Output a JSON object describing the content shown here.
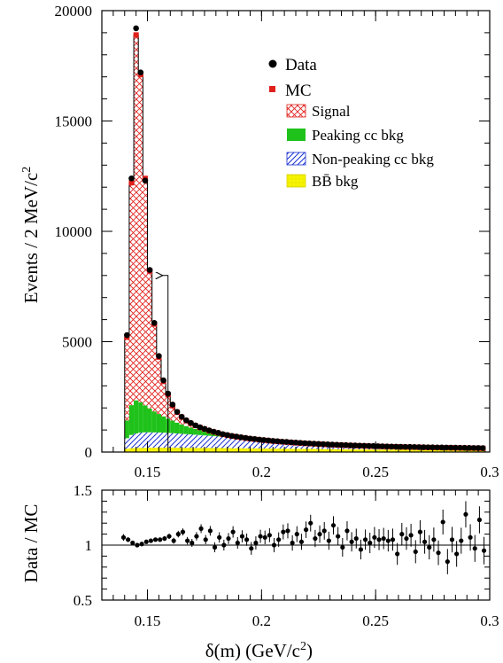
{
  "chart_data": [
    {
      "type": "bar",
      "ylabel": "Events / 2 MeV/c",
      "ylabel_sup": "2",
      "xlim": [
        0.13,
        0.3
      ],
      "ylim": [
        0,
        20000
      ],
      "x_ticks": [
        "0.15",
        "0.2",
        "0.25",
        "0.3"
      ],
      "y_ticks": [
        "0",
        "5000",
        "10000",
        "15000",
        "20000"
      ],
      "legend": {
        "position": "top-right",
        "entries": [
          {
            "key": "data",
            "label": "Data",
            "marker": "dot"
          },
          {
            "key": "mc",
            "label": "MC",
            "marker": "red-square"
          },
          {
            "key": "signal",
            "label": "Signal",
            "marker": "red-crosshatch"
          },
          {
            "key": "peaking",
            "label": "Peaking cc bkg",
            "marker": "green-fill"
          },
          {
            "key": "nonpeaking",
            "label": "Non-peaking cc bkg",
            "marker": "blue-hatch"
          },
          {
            "key": "bbbar",
            "label": "BB̄ bkg",
            "marker": "yellow-fill"
          }
        ]
      },
      "annotation": {
        "type": "arrow",
        "x": 0.159,
        "y_from": 0,
        "y_to": 8000
      },
      "bin_width": 0.002,
      "bins": {
        "x_low": [
          0.138,
          0.14,
          0.142,
          0.144,
          0.146,
          0.148,
          0.15,
          0.152,
          0.154,
          0.156,
          0.158,
          0.16,
          0.162,
          0.164,
          0.166,
          0.168,
          0.17,
          0.172,
          0.174,
          0.176,
          0.178,
          0.18,
          0.182,
          0.184,
          0.186,
          0.188,
          0.19,
          0.192,
          0.194,
          0.196,
          0.198,
          0.2,
          0.202,
          0.204,
          0.206,
          0.208,
          0.21,
          0.212,
          0.214,
          0.216,
          0.218,
          0.22,
          0.222,
          0.224,
          0.226,
          0.228,
          0.23,
          0.232,
          0.234,
          0.236,
          0.238,
          0.24,
          0.242,
          0.244,
          0.246,
          0.248,
          0.25,
          0.252,
          0.254,
          0.256,
          0.258,
          0.26,
          0.262,
          0.264,
          0.266,
          0.268,
          0.27,
          0.272,
          0.274,
          0.276,
          0.278,
          0.28,
          0.282,
          0.284,
          0.286,
          0.288,
          0.29,
          0.292,
          0.294,
          0.296
        ],
        "mc_total": [
          0,
          5200,
          12200,
          18900,
          17100,
          12400,
          8200,
          5800,
          4300,
          3200,
          2600,
          2100,
          1800,
          1580,
          1420,
          1300,
          1200,
          1110,
          1040,
          970,
          910,
          860,
          800,
          760,
          720,
          690,
          660,
          630,
          600,
          580,
          555,
          535,
          515,
          495,
          478,
          462,
          448,
          432,
          418,
          405,
          392,
          380,
          369,
          358,
          348,
          338,
          329,
          320,
          312,
          304,
          296,
          289,
          282,
          275,
          269,
          263,
          257,
          251,
          246,
          241,
          236,
          231,
          227,
          223,
          219,
          215,
          211,
          207,
          204,
          201,
          198,
          195,
          192,
          189,
          186,
          183,
          180,
          177,
          174,
          171
        ],
        "data": [
          0,
          5300,
          12400,
          19200,
          17200,
          12300,
          8250,
          5850,
          4350,
          3250,
          2650,
          2150,
          1820,
          1600,
          1440,
          1320,
          1210,
          1120,
          1050,
          980,
          920,
          870,
          810,
          770,
          730,
          700,
          670,
          640,
          610,
          590,
          565,
          545,
          525,
          505,
          488,
          472,
          458,
          442,
          428,
          415,
          402,
          390,
          378,
          367,
          357,
          347,
          338,
          329,
          321,
          313,
          305,
          298,
          291,
          284,
          278,
          272,
          266,
          260,
          255,
          250,
          245,
          240,
          236,
          232,
          228,
          224,
          220,
          216,
          213,
          210,
          207,
          204,
          201,
          198,
          195,
          192,
          189,
          186,
          183,
          180
        ],
        "peaking": [
          0,
          800,
          1350,
          1500,
          1380,
          1220,
          1080,
          950,
          840,
          740,
          650,
          570,
          490,
          420,
          360,
          310,
          260,
          220,
          185,
          155,
          130,
          110,
          92,
          77,
          64,
          54,
          46,
          39,
          33,
          28,
          24,
          21,
          18,
          16,
          14,
          12,
          11,
          10,
          9,
          8,
          7,
          7,
          6,
          6,
          5,
          5,
          5,
          4,
          4,
          4,
          4,
          3,
          3,
          3,
          3,
          3,
          3,
          3,
          2,
          2,
          2,
          2,
          2,
          2,
          2,
          2,
          2,
          2,
          2,
          2,
          2,
          2,
          2,
          2,
          2,
          2,
          2,
          2,
          2,
          2
        ],
        "nonpeaking": [
          0,
          480,
          600,
          660,
          690,
          700,
          700,
          695,
          688,
          680,
          670,
          660,
          648,
          635,
          622,
          608,
          594,
          580,
          566,
          552,
          538,
          524,
          510,
          496,
          482,
          468,
          454,
          440,
          428,
          416,
          404,
          392,
          380,
          369,
          358,
          347,
          337,
          327,
          317,
          308,
          299,
          290,
          281,
          273,
          265,
          257,
          250,
          243,
          236,
          229,
          222,
          216,
          210,
          204,
          198,
          193,
          188,
          183,
          178,
          173,
          168,
          164,
          160,
          156,
          152,
          148,
          144,
          140,
          137,
          134,
          131,
          128,
          125,
          122,
          119,
          116,
          113,
          110,
          107,
          104
        ],
        "bbbar": [
          0,
          150,
          175,
          185,
          190,
          193,
          195,
          196,
          197,
          197,
          197,
          196,
          195,
          194,
          193,
          192,
          191,
          190,
          188,
          186,
          184,
          182,
          180,
          178,
          176,
          174,
          172,
          170,
          168,
          166,
          164,
          162,
          160,
          158,
          156,
          154,
          152,
          150,
          148,
          146,
          144,
          142,
          140,
          138,
          136,
          134,
          132,
          130,
          128,
          126,
          124,
          122,
          120,
          118,
          116,
          114,
          112,
          110,
          108,
          106,
          104,
          102,
          100,
          98,
          96,
          94,
          92,
          90,
          88,
          86,
          84,
          82,
          80,
          78,
          76,
          74,
          72,
          70,
          68,
          66
        ]
      }
    },
    {
      "type": "scatter",
      "ylabel": "Data / MC",
      "xlabel": "δ(m) (GeV/c",
      "xlabel_sup": "2",
      "xlabel_tail": ")",
      "xlim": [
        0.13,
        0.3
      ],
      "ylim": [
        0.5,
        1.5
      ],
      "x_ticks": [
        "0.15",
        "0.2",
        "0.25",
        "0.3"
      ],
      "y_ticks": [
        "0.5",
        "1",
        "1.5"
      ],
      "reference_line": 1.0,
      "x": [
        0.1395,
        0.1415,
        0.1435,
        0.1455,
        0.1475,
        0.1495,
        0.1515,
        0.1535,
        0.1555,
        0.1575,
        0.1595,
        0.1615,
        0.1635,
        0.1655,
        0.1675,
        0.1695,
        0.1715,
        0.1735,
        0.1755,
        0.1775,
        0.1795,
        0.1815,
        0.1835,
        0.1855,
        0.1875,
        0.1895,
        0.1915,
        0.1935,
        0.1955,
        0.1975,
        0.1995,
        0.2015,
        0.2035,
        0.2055,
        0.2075,
        0.2095,
        0.2115,
        0.2135,
        0.2155,
        0.2175,
        0.2195,
        0.2215,
        0.2235,
        0.2255,
        0.2275,
        0.2295,
        0.2315,
        0.2335,
        0.2355,
        0.2375,
        0.2395,
        0.2415,
        0.2435,
        0.2455,
        0.2475,
        0.2495,
        0.2515,
        0.2535,
        0.2555,
        0.2575,
        0.2595,
        0.2615,
        0.2635,
        0.2655,
        0.2675,
        0.2695,
        0.2715,
        0.2735,
        0.2755,
        0.2775,
        0.2795,
        0.2815,
        0.2835,
        0.2855,
        0.2875,
        0.2895,
        0.2915,
        0.2935,
        0.2955,
        0.2975
      ],
      "y": [
        1.07,
        1.05,
        1.02,
        1.0,
        1.01,
        1.03,
        1.04,
        1.05,
        1.05,
        1.06,
        1.08,
        1.04,
        1.1,
        1.12,
        1.04,
        1.02,
        1.08,
        1.15,
        1.05,
        1.13,
        0.98,
        1.07,
        1.0,
        1.06,
        1.12,
        1.02,
        1.08,
        1.05,
        0.97,
        1.02,
        1.08,
        1.07,
        1.09,
        1.0,
        1.05,
        1.12,
        1.13,
        1.02,
        1.1,
        1.03,
        1.14,
        1.2,
        1.06,
        1.1,
        1.13,
        1.04,
        1.18,
        1.08,
        0.98,
        1.13,
        1.03,
        1.06,
        0.96,
        1.05,
        1.02,
        1.07,
        1.05,
        1.06,
        1.04,
        1.05,
        0.92,
        1.1,
        1.06,
        1.09,
        0.94,
        1.12,
        1.03,
        0.98,
        1.05,
        0.93,
        1.21,
        0.85,
        1.05,
        0.92,
        1.04,
        1.28,
        1.07,
        0.97,
        1.23,
        0.95
      ],
      "yerr": [
        0.03,
        0.02,
        0.015,
        0.012,
        0.012,
        0.013,
        0.015,
        0.017,
        0.02,
        0.022,
        0.024,
        0.027,
        0.03,
        0.032,
        0.034,
        0.036,
        0.038,
        0.04,
        0.042,
        0.044,
        0.045,
        0.047,
        0.049,
        0.05,
        0.052,
        0.053,
        0.055,
        0.056,
        0.058,
        0.06,
        0.06,
        0.062,
        0.063,
        0.065,
        0.066,
        0.068,
        0.069,
        0.07,
        0.072,
        0.073,
        0.075,
        0.076,
        0.078,
        0.079,
        0.08,
        0.082,
        0.083,
        0.084,
        0.085,
        0.087,
        0.088,
        0.09,
        0.09,
        0.092,
        0.093,
        0.095,
        0.096,
        0.097,
        0.098,
        0.1,
        0.1,
        0.102,
        0.103,
        0.104,
        0.105,
        0.107,
        0.108,
        0.11,
        0.11,
        0.112,
        0.113,
        0.115,
        0.116,
        0.117,
        0.118,
        0.12,
        0.12,
        0.122,
        0.123,
        0.125
      ]
    }
  ]
}
